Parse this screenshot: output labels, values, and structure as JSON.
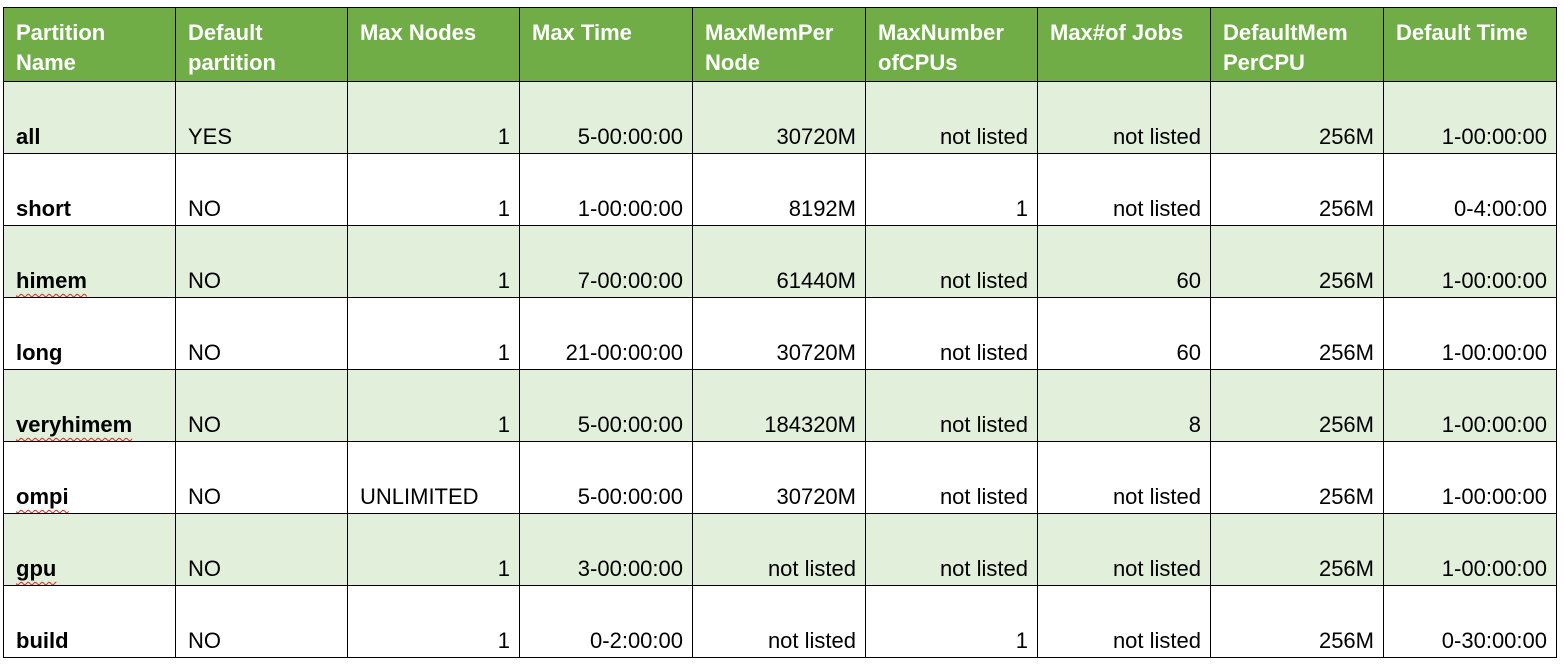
{
  "table": {
    "headers": [
      "Partition Name",
      "Default partition",
      "Max Nodes",
      "Max Time",
      "MaxMemPer Node",
      "MaxNumber ofCPUs",
      "Max#of Jobs",
      "DefaultMem PerCPU",
      "Default Time"
    ],
    "rows": [
      [
        "all",
        "YES",
        "1",
        "5-00:00:00",
        "30720M",
        "not listed",
        "not listed",
        "256M",
        "1-00:00:00"
      ],
      [
        "short",
        "NO",
        "1",
        "1-00:00:00",
        "8192M",
        "1",
        "not listed",
        "256M",
        "0-4:00:00"
      ],
      [
        "himem",
        "NO",
        "1",
        "7-00:00:00",
        "61440M",
        "not listed",
        "60",
        "256M",
        "1-00:00:00"
      ],
      [
        "long",
        "NO",
        "1",
        "21-00:00:00",
        "30720M",
        "not listed",
        "60",
        "256M",
        "1-00:00:00"
      ],
      [
        "veryhimem",
        "NO",
        "1",
        "5-00:00:00",
        "184320M",
        "not listed",
        "8",
        "256M",
        "1-00:00:00"
      ],
      [
        "ompi",
        "NO",
        "UNLIMITED",
        "5-00:00:00",
        "30720M",
        "not listed",
        "not listed",
        "256M",
        "1-00:00:00"
      ],
      [
        "gpu",
        "NO",
        "1",
        "3-00:00:00",
        "not listed",
        "not listed",
        "not listed",
        "256M",
        "1-00:00:00"
      ],
      [
        "build",
        "NO",
        "1",
        "0-2:00:00",
        "not listed",
        "1",
        "not listed",
        "256M",
        "0-30:00:00"
      ]
    ]
  },
  "colors": {
    "header_bg": "#70ad47",
    "header_text": "#ffffff",
    "band_row": "#e2efda",
    "plain_row": "#ffffff",
    "spellcheck_underline": "#e02020"
  }
}
